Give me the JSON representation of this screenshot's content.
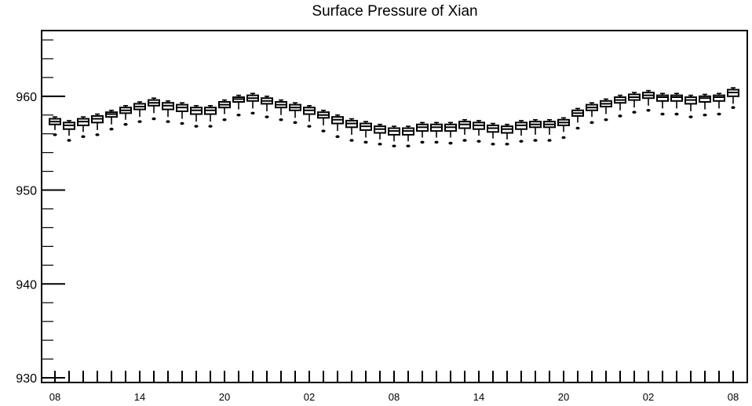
{
  "chart_data": {
    "type": "box",
    "title": "Surface Pressure of Xian",
    "xlabel": "",
    "ylabel": "",
    "ylim": [
      929.5,
      967
    ],
    "grid": false,
    "legend": "none",
    "x_tick_labels": [
      "08",
      "14",
      "20",
      "02",
      "08",
      "14",
      "20",
      "02",
      "08"
    ],
    "y_tick_labels": [
      "930",
      "940",
      "950",
      "960"
    ],
    "y_ticks": [
      930,
      940,
      950,
      960
    ],
    "series": [
      {
        "median": [
          957.3,
          956.9,
          957.3,
          957.6,
          958.1,
          958.5,
          958.9,
          959.3,
          959.0,
          958.8,
          958.5,
          958.5,
          959.1,
          959.7,
          959.8,
          959.5,
          959.1,
          958.8,
          958.5,
          958.0,
          957.5,
          957.1,
          956.8,
          956.5,
          956.3,
          956.3,
          956.7,
          956.7,
          956.7,
          957.0,
          956.9,
          956.6,
          956.5,
          956.9,
          957.0,
          957.0,
          957.2,
          958.2,
          958.8,
          959.2,
          959.6,
          959.9,
          960.1,
          959.9,
          959.9,
          959.6,
          959.8,
          959.9,
          960.4
        ],
        "q1": [
          957.0,
          956.5,
          956.9,
          957.2,
          957.8,
          958.2,
          958.6,
          959.0,
          958.6,
          958.4,
          958.1,
          958.1,
          958.8,
          959.4,
          959.5,
          959.2,
          958.8,
          958.5,
          958.1,
          957.7,
          957.1,
          956.7,
          956.4,
          956.1,
          955.9,
          955.9,
          956.3,
          956.3,
          956.3,
          956.6,
          956.5,
          956.2,
          956.1,
          956.5,
          956.7,
          956.7,
          956.9,
          957.9,
          958.5,
          958.9,
          959.3,
          959.6,
          959.8,
          959.5,
          959.5,
          959.2,
          959.4,
          959.5,
          960.0
        ],
        "q3": [
          957.6,
          957.2,
          957.6,
          957.9,
          958.3,
          958.8,
          959.2,
          959.6,
          959.3,
          959.1,
          958.8,
          958.8,
          959.4,
          959.9,
          960.1,
          959.8,
          959.4,
          959.1,
          958.8,
          958.3,
          957.8,
          957.4,
          957.1,
          956.8,
          956.6,
          956.6,
          957.0,
          957.0,
          957.0,
          957.3,
          957.2,
          956.9,
          956.8,
          957.2,
          957.3,
          957.3,
          957.5,
          958.5,
          959.1,
          959.5,
          959.9,
          960.2,
          960.4,
          960.1,
          960.1,
          959.9,
          960.0,
          960.1,
          960.7
        ],
        "low": [
          956.4,
          955.8,
          956.2,
          956.4,
          957.0,
          957.5,
          957.8,
          958.2,
          957.8,
          957.6,
          957.3,
          957.3,
          958.1,
          958.6,
          958.7,
          958.4,
          958.0,
          957.7,
          957.3,
          956.9,
          956.3,
          955.9,
          955.6,
          955.4,
          955.2,
          955.2,
          955.6,
          955.6,
          955.6,
          955.9,
          955.8,
          955.5,
          955.4,
          955.8,
          955.9,
          955.9,
          956.2,
          957.2,
          957.8,
          958.1,
          958.5,
          958.8,
          959.0,
          958.7,
          958.7,
          958.4,
          958.6,
          958.7,
          959.2
        ],
        "high": [
          957.8,
          957.4,
          957.8,
          958.1,
          958.5,
          959.0,
          959.4,
          959.8,
          959.5,
          959.3,
          959.0,
          959.0,
          959.6,
          960.1,
          960.3,
          960.0,
          959.6,
          959.3,
          959.0,
          958.5,
          958.0,
          957.6,
          957.3,
          957.0,
          956.8,
          956.8,
          957.2,
          957.2,
          957.2,
          957.5,
          957.4,
          957.1,
          957.0,
          957.4,
          957.5,
          957.5,
          957.7,
          958.7,
          959.3,
          959.7,
          960.1,
          960.4,
          960.6,
          960.3,
          960.3,
          960.1,
          960.2,
          960.3,
          960.9
        ],
        "outlier": [
          955.9,
          955.3,
          955.7,
          955.9,
          956.5,
          957.0,
          957.3,
          957.6,
          957.3,
          957.1,
          956.8,
          956.8,
          957.5,
          958.0,
          958.2,
          957.8,
          957.5,
          957.2,
          956.8,
          956.3,
          955.7,
          955.3,
          955.1,
          954.9,
          954.7,
          954.7,
          955.1,
          955.1,
          955.0,
          955.3,
          955.2,
          954.9,
          954.9,
          955.2,
          955.3,
          955.3,
          955.6,
          956.6,
          957.2,
          957.5,
          957.9,
          958.3,
          958.5,
          958.1,
          958.1,
          957.8,
          958.0,
          958.1,
          958.8
        ]
      }
    ]
  }
}
